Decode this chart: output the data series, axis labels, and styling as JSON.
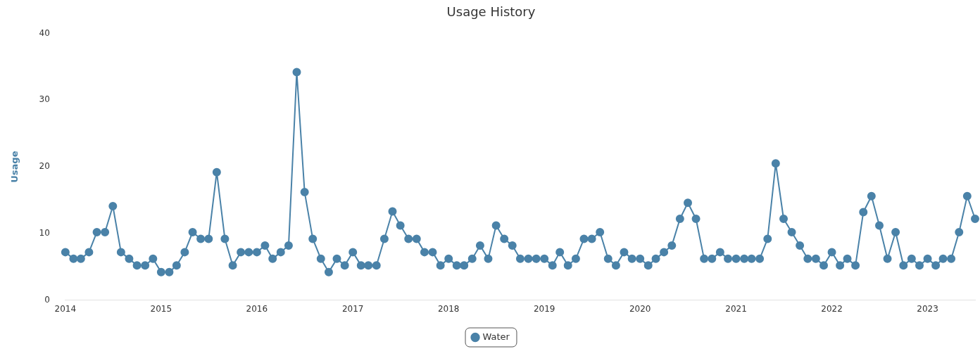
{
  "chart_data": {
    "type": "line",
    "title": "Usage History",
    "ylabel": "Usage",
    "x": [
      "2014-01",
      "2014-02",
      "2014-03",
      "2014-04",
      "2014-05",
      "2014-06",
      "2014-07",
      "2014-08",
      "2014-09",
      "2014-10",
      "2014-11",
      "2014-12",
      "2015-01",
      "2015-02",
      "2015-03",
      "2015-04",
      "2015-05",
      "2015-06",
      "2015-07",
      "2015-08",
      "2015-09",
      "2015-10",
      "2015-11",
      "2015-12",
      "2016-01",
      "2016-02",
      "2016-03",
      "2016-04",
      "2016-05",
      "2016-06",
      "2016-07",
      "2016-08",
      "2016-09",
      "2016-10",
      "2016-11",
      "2016-12",
      "2017-01",
      "2017-02",
      "2017-03",
      "2017-04",
      "2017-05",
      "2017-06",
      "2017-07",
      "2017-08",
      "2017-09",
      "2017-10",
      "2017-11",
      "2017-12",
      "2018-01",
      "2018-02",
      "2018-03",
      "2018-04",
      "2018-05",
      "2018-06",
      "2018-07",
      "2018-08",
      "2018-09",
      "2018-10",
      "2018-11",
      "2018-12",
      "2019-01",
      "2019-02",
      "2019-03",
      "2019-04",
      "2019-05",
      "2019-06",
      "2019-07",
      "2019-08",
      "2019-09",
      "2019-10",
      "2019-11",
      "2019-12",
      "2020-01",
      "2020-02",
      "2020-03",
      "2020-04",
      "2020-05",
      "2020-06",
      "2020-07",
      "2020-08",
      "2020-09",
      "2020-10",
      "2020-11",
      "2020-12",
      "2021-01",
      "2021-02",
      "2021-03",
      "2021-04",
      "2021-05",
      "2021-06",
      "2021-07",
      "2021-08",
      "2021-09",
      "2021-10",
      "2021-11",
      "2021-12",
      "2022-01",
      "2022-02",
      "2022-03",
      "2022-04",
      "2022-05",
      "2022-06",
      "2022-07",
      "2022-08",
      "2022-09",
      "2022-10",
      "2022-11",
      "2022-12",
      "2023-01",
      "2023-02",
      "2023-03",
      "2023-04",
      "2023-05",
      "2023-06",
      "2023-07"
    ],
    "series": [
      {
        "name": "Water",
        "color": "#4a82a8",
        "values": [
          7.2,
          6.2,
          6.2,
          7.2,
          10.2,
          10.2,
          14.1,
          7.2,
          6.2,
          5.2,
          5.2,
          6.2,
          4.2,
          4.2,
          5.2,
          7.2,
          10.2,
          9.2,
          9.2,
          19.2,
          9.2,
          5.2,
          7.2,
          7.2,
          7.2,
          8.2,
          6.2,
          7.2,
          8.2,
          34.2,
          16.2,
          9.2,
          6.2,
          4.2,
          6.2,
          5.2,
          7.2,
          5.2,
          5.2,
          5.2,
          9.2,
          13.3,
          11.2,
          9.2,
          9.2,
          7.2,
          7.2,
          5.2,
          6.2,
          5.2,
          5.2,
          6.2,
          8.2,
          6.2,
          11.2,
          9.2,
          8.2,
          6.2,
          6.2,
          6.2,
          6.2,
          5.2,
          7.2,
          5.2,
          6.2,
          9.2,
          9.2,
          10.2,
          6.2,
          5.2,
          7.2,
          6.2,
          6.2,
          5.2,
          6.2,
          7.2,
          8.2,
          12.2,
          14.6,
          12.2,
          6.2,
          6.2,
          7.2,
          6.2,
          6.2,
          6.2,
          6.2,
          6.2,
          9.2,
          20.5,
          12.2,
          10.2,
          8.2,
          6.2,
          6.2,
          5.2,
          7.2,
          5.2,
          6.2,
          5.2,
          13.2,
          15.6,
          11.2,
          6.2,
          10.2,
          5.2,
          6.2,
          5.2,
          6.2,
          5.2,
          6.2,
          6.2,
          10.2,
          15.6,
          12.2
        ]
      }
    ],
    "xlim": [
      "2014-01",
      "2023-07"
    ],
    "xticks": [
      "2014",
      "2015",
      "2016",
      "2017",
      "2018",
      "2019",
      "2020",
      "2021",
      "2022",
      "2023"
    ],
    "ylim": [
      0,
      40
    ],
    "yticks": [
      0,
      10,
      20,
      30,
      40
    ],
    "grid": false,
    "legend": "bottom",
    "marker": "circle",
    "line_style": "solid"
  }
}
